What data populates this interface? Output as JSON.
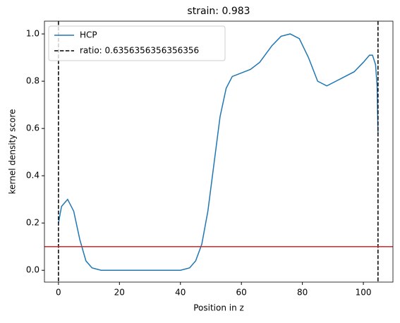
{
  "chart_data": {
    "type": "line",
    "title": "strain: 0.983",
    "xlabel": "Position in z",
    "ylabel": "kernel density score",
    "x": [
      0,
      1,
      3,
      5,
      7,
      9,
      11,
      14,
      20,
      30,
      40,
      43,
      45,
      47,
      49,
      51,
      53,
      55,
      57,
      60,
      63,
      66,
      70,
      73,
      76,
      79,
      82,
      85,
      88,
      91,
      94,
      97,
      100,
      102,
      103,
      104,
      104.5,
      104.8
    ],
    "series": [
      {
        "name": "HCP",
        "color": "#1f77b4",
        "values": [
          0.2,
          0.27,
          0.3,
          0.25,
          0.13,
          0.04,
          0.01,
          0,
          0,
          0,
          0,
          0.01,
          0.04,
          0.11,
          0.25,
          0.45,
          0.65,
          0.77,
          0.82,
          0.835,
          0.85,
          0.88,
          0.95,
          0.99,
          1.0,
          0.98,
          0.9,
          0.8,
          0.78,
          0.8,
          0.82,
          0.84,
          0.88,
          0.91,
          0.91,
          0.87,
          0.78,
          0.58
        ]
      }
    ],
    "vlines": {
      "name": "ratio: 0.6356356356356356",
      "color": "#000000",
      "values": [
        0,
        104.8
      ]
    },
    "hline": {
      "value": 0.1,
      "color": "#d62728"
    },
    "xlim": [
      -4.6,
      109.7
    ],
    "ylim": [
      -0.05,
      1.054
    ],
    "xticks": [
      0,
      20,
      40,
      60,
      80,
      100
    ],
    "yticks": [
      {
        "value": 0,
        "label": "0.0"
      },
      0.2,
      0.4,
      0.6,
      0.8,
      {
        "value": 1,
        "label": "1.0"
      }
    ],
    "legend": "upper left"
  }
}
